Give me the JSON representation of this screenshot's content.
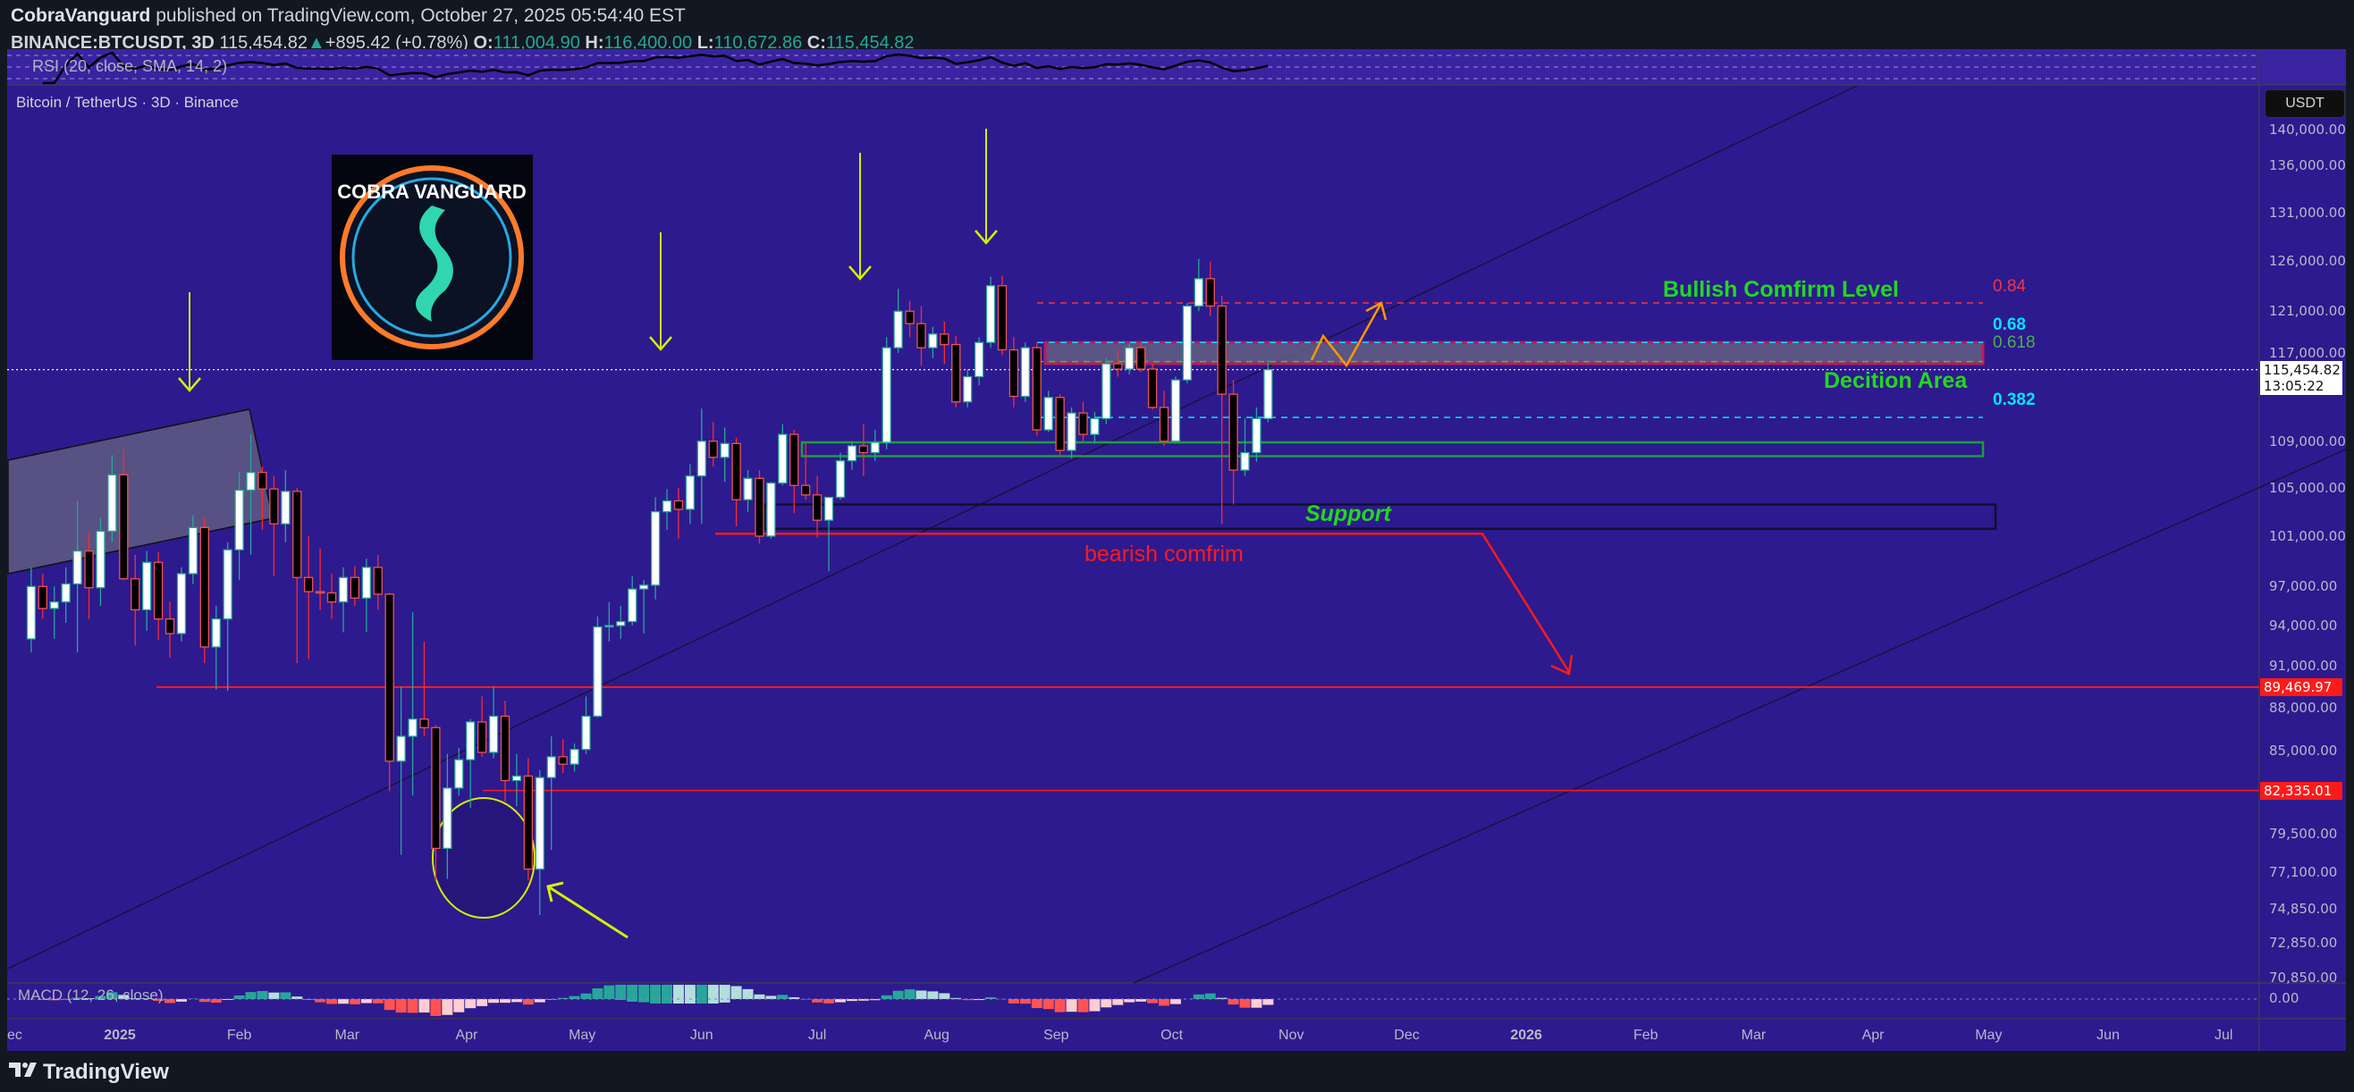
{
  "header": {
    "author": "CobraVanguard",
    "published": " published on TradingView.com, October 27, 2025 05:54:40 EST",
    "ticker": "BINANCE:BTCUSDT, 3D",
    "last": "115,454.82",
    "change": "+895.42 (+0.78%)",
    "o_label": "O:",
    "o": "111,004.90",
    "h_label": "H:",
    "h": "116,400.00",
    "l_label": "L:",
    "l": "110,672.86",
    "c_label": "C:",
    "c": "115,454.82"
  },
  "rsi": {
    "label": "RSI (20, close, SMA, 14, 2)"
  },
  "macd": {
    "label": "MACD (12, 26, close)",
    "zero_label": "0.00"
  },
  "symbol_label": "Bitcoin / TetherUS · 3D · Binance",
  "currency": "USDT",
  "last_price_badge": {
    "price": "115,454.82",
    "countdown": "13:05:22"
  },
  "level_badges": [
    {
      "value": 89469.97,
      "label": "89,469.97"
    },
    {
      "value": 82335.01,
      "label": "82,335.01"
    }
  ],
  "logo": {
    "text": "COBRA VANGUARD"
  },
  "annotations": {
    "bullish": "Bullish Comfirm Level",
    "decision": "Decition Area",
    "support": "Support",
    "bearish": "bearish comfrim",
    "fib_084": "0.84",
    "fib_068": "0.68",
    "fib_0618": "0.618",
    "fib_0382": "0.382"
  },
  "colors": {
    "background": "#2d1a8e",
    "up": "#26a69a",
    "down": "#ef5350",
    "annotation_green": "#22d81e",
    "annotation_red": "#ff1a1a",
    "arrow_yellow": "#d4f000",
    "zigzag": "#ff9800"
  },
  "footer": {
    "brand": "TradingView"
  },
  "chart_data": {
    "type": "candlestick",
    "interval_days": 3,
    "last_candle_date": "2025-10-26",
    "y_scale": "log",
    "ylim": [
      70850,
      140000
    ],
    "price_ticks": [
      140000,
      136000,
      131000,
      126000,
      121000,
      117000,
      109000,
      105000,
      101000,
      97000,
      94000,
      91000,
      88000,
      85000,
      79500,
      77100,
      74850,
      72850,
      70850
    ],
    "price_tick_labels": [
      "140,000.00",
      "136,000.00",
      "131,000.00",
      "126,000.00",
      "121,000.00",
      "117,000.00",
      "109,000.00",
      "105,000.00",
      "101,000.00",
      "97,000.00",
      "94,000.00",
      "91,000.00",
      "88,000.00",
      "85,000.00",
      "79,500.00",
      "77,100.00",
      "74,850.00",
      "72,850.00",
      "70,850.00"
    ],
    "time_ticks": [
      {
        "label": "ec",
        "date": "2024-12-01"
      },
      {
        "label": "2025",
        "date": "2025-01-01"
      },
      {
        "label": "Feb",
        "date": "2025-02-01"
      },
      {
        "label": "Mar",
        "date": "2025-03-01"
      },
      {
        "label": "Apr",
        "date": "2025-04-01"
      },
      {
        "label": "May",
        "date": "2025-05-01"
      },
      {
        "label": "Jun",
        "date": "2025-06-01"
      },
      {
        "label": "Jul",
        "date": "2025-07-01"
      },
      {
        "label": "Aug",
        "date": "2025-08-01"
      },
      {
        "label": "Sep",
        "date": "2025-09-01"
      },
      {
        "label": "Oct",
        "date": "2025-10-01"
      },
      {
        "label": "Nov",
        "date": "2025-11-01"
      },
      {
        "label": "Dec",
        "date": "2025-12-01"
      },
      {
        "label": "2026",
        "date": "2026-01-01"
      },
      {
        "label": "Feb",
        "date": "2026-02-01"
      },
      {
        "label": "Mar",
        "date": "2026-03-01"
      },
      {
        "label": "Apr",
        "date": "2026-04-01"
      },
      {
        "label": "May",
        "date": "2026-05-01"
      },
      {
        "label": "Jun",
        "date": "2026-06-01"
      },
      {
        "label": "Jul",
        "date": "2026-07-01"
      }
    ],
    "horizontal_levels": [
      89469.97,
      82335.01
    ],
    "fib_levels": {
      "0.84": 121800,
      "0.68": 118000,
      "0.618": 116200,
      "0.382": 111100
    },
    "decision_zone": [
      116000,
      118000
    ],
    "green_zone": [
      107700,
      108900
    ],
    "support_zone": [
      101600,
      103600
    ],
    "bearish_confirm_level": 101200,
    "last_price": 115454.82,
    "candles_ohlc": [
      [
        93000,
        98500,
        92000,
        97000
      ],
      [
        97000,
        98000,
        94500,
        95300
      ],
      [
        95300,
        97000,
        93000,
        95800
      ],
      [
        95800,
        98500,
        94200,
        97200
      ],
      [
        97200,
        103900,
        92000,
        99800
      ],
      [
        99800,
        101300,
        94500,
        96900
      ],
      [
        96900,
        102500,
        95500,
        101400
      ],
      [
        101400,
        107800,
        100500,
        106100
      ],
      [
        106100,
        108300,
        97500,
        97600
      ],
      [
        97600,
        99500,
        92500,
        95200
      ],
      [
        95200,
        99800,
        93600,
        98900
      ],
      [
        98900,
        99700,
        92900,
        94500
      ],
      [
        94500,
        95800,
        91600,
        93400
      ],
      [
        93400,
        98500,
        92800,
        98000
      ],
      [
        98000,
        102700,
        97200,
        101700
      ],
      [
        101700,
        102500,
        91200,
        92400
      ],
      [
        92400,
        95500,
        89300,
        94500
      ],
      [
        94500,
        100500,
        89200,
        99900
      ],
      [
        99900,
        106300,
        97500,
        104800
      ],
      [
        104800,
        109600,
        99500,
        106300
      ],
      [
        106300,
        106800,
        101500,
        104900
      ],
      [
        104900,
        106000,
        97800,
        102000
      ],
      [
        102000,
        106500,
        100500,
        104700
      ],
      [
        104700,
        105000,
        91200,
        97700
      ],
      [
        97700,
        101000,
        91500,
        96600
      ],
      [
        96600,
        100000,
        95200,
        96500
      ],
      [
        96500,
        98000,
        94500,
        95800
      ],
      [
        95800,
        98500,
        93500,
        97700
      ],
      [
        97700,
        98600,
        95500,
        96100
      ],
      [
        96100,
        99200,
        93500,
        98500
      ],
      [
        98500,
        99500,
        95200,
        96400
      ],
      [
        96400,
        96500,
        82300,
        84300
      ],
      [
        84300,
        89500,
        78200,
        86000
      ],
      [
        86000,
        95000,
        82000,
        87200
      ],
      [
        87200,
        92800,
        86000,
        86600
      ],
      [
        86600,
        86800,
        76600,
        78600
      ],
      [
        78600,
        84800,
        76700,
        82500
      ],
      [
        82500,
        85200,
        82000,
        84400
      ],
      [
        84400,
        87200,
        81200,
        87000
      ],
      [
        87000,
        88800,
        84600,
        84900
      ],
      [
        84900,
        89500,
        84500,
        87400
      ],
      [
        87400,
        88500,
        81600,
        83000
      ],
      [
        83000,
        84800,
        81300,
        83300
      ],
      [
        83300,
        84500,
        76600,
        77300
      ],
      [
        77300,
        83700,
        74500,
        83200
      ],
      [
        83200,
        86000,
        78500,
        84600
      ],
      [
        84600,
        85800,
        83500,
        84100
      ],
      [
        84100,
        85500,
        83600,
        85100
      ],
      [
        85100,
        88800,
        84800,
        87400
      ],
      [
        87400,
        94700,
        87300,
        93900
      ],
      [
        93900,
        95800,
        92800,
        94000
      ],
      [
        94000,
        95500,
        93000,
        94300
      ],
      [
        94300,
        97800,
        94000,
        96800
      ],
      [
        96800,
        97500,
        93400,
        97100
      ],
      [
        97100,
        104200,
        96000,
        103000
      ],
      [
        103000,
        104900,
        101500,
        103900
      ],
      [
        103900,
        105000,
        100800,
        103200
      ],
      [
        103200,
        107000,
        102000,
        106000
      ],
      [
        106000,
        111900,
        102000,
        109000
      ],
      [
        109000,
        110700,
        106800,
        107600
      ],
      [
        107600,
        110200,
        105500,
        108800
      ],
      [
        108800,
        109300,
        101800,
        104000
      ],
      [
        104000,
        106500,
        103000,
        105800
      ],
      [
        105800,
        106500,
        100400,
        101000
      ],
      [
        101000,
        105500,
        100800,
        105400
      ],
      [
        105400,
        110500,
        105200,
        109600
      ],
      [
        109600,
        110000,
        102900,
        105200
      ],
      [
        105200,
        108900,
        104000,
        104400
      ],
      [
        104400,
        106000,
        100900,
        102300
      ],
      [
        102300,
        104000,
        98200,
        104200
      ],
      [
        104200,
        108000,
        104000,
        107300
      ],
      [
        107300,
        109000,
        106500,
        108600
      ],
      [
        108600,
        110500,
        106000,
        108000
      ],
      [
        108000,
        110000,
        107300,
        108900
      ],
      [
        108900,
        118500,
        108300,
        117500
      ],
      [
        117500,
        123200,
        117000,
        121000
      ],
      [
        121000,
        122000,
        118500,
        119800
      ],
      [
        119800,
        121500,
        115800,
        117500
      ],
      [
        117500,
        119500,
        116500,
        118800
      ],
      [
        118800,
        120000,
        116000,
        117800
      ],
      [
        117800,
        118600,
        112000,
        112500
      ],
      [
        112500,
        115500,
        112000,
        114800
      ],
      [
        114800,
        118500,
        114000,
        118000
      ],
      [
        118000,
        124400,
        117500,
        123500
      ],
      [
        123500,
        124500,
        116800,
        117300
      ],
      [
        117300,
        118500,
        112000,
        113000
      ],
      [
        113000,
        118000,
        112500,
        117500
      ],
      [
        117500,
        118000,
        109500,
        110000
      ],
      [
        110000,
        113500,
        109800,
        112900
      ],
      [
        112900,
        113200,
        107800,
        108200
      ],
      [
        108200,
        112000,
        107500,
        111500
      ],
      [
        111500,
        112500,
        109000,
        109600
      ],
      [
        109600,
        111600,
        108800,
        111000
      ],
      [
        111000,
        116500,
        110500,
        116000
      ],
      [
        116000,
        117300,
        114800,
        115500
      ],
      [
        115500,
        117900,
        115000,
        117500
      ],
      [
        117500,
        118000,
        115200,
        115500
      ],
      [
        115500,
        116000,
        111800,
        112000
      ],
      [
        112000,
        113500,
        108600,
        109000
      ],
      [
        109000,
        114800,
        108800,
        114500
      ],
      [
        114500,
        121800,
        114200,
        121500
      ],
      [
        121500,
        126200,
        121000,
        124200
      ],
      [
        124200,
        125900,
        120500,
        121500
      ],
      [
        121500,
        122500,
        102000,
        113200
      ],
      [
        113200,
        114500,
        103600,
        106500
      ],
      [
        106500,
        111000,
        106000,
        108000
      ],
      [
        108000,
        112000,
        107200,
        111004.9
      ],
      [
        111004.9,
        116400,
        110672.86,
        115454.82
      ]
    ]
  }
}
